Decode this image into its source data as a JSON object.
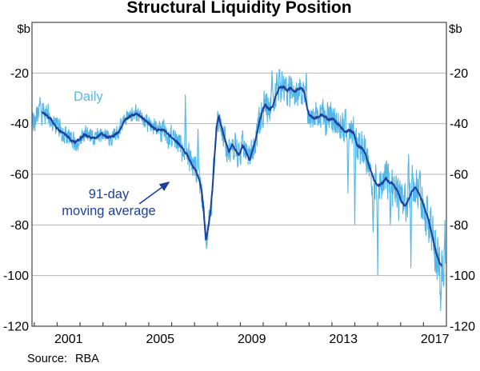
{
  "header": {
    "title": "Structural Liquidity Position"
  },
  "axes": {
    "y_unit_left": "$b",
    "y_unit_right": "$b"
  },
  "annotations": {
    "daily_label": "Daily",
    "ma_label_line1": "91-day",
    "ma_label_line2": "moving average"
  },
  "footer": {
    "source_label": "Source:",
    "source_value": "RBA"
  },
  "colors": {
    "daily": "#54b7e8",
    "moving_average": "#1e3f9b",
    "gridline": "#b5b5b5",
    "frame": "#444444"
  },
  "chart_data": {
    "type": "line",
    "title": "Structural Liquidity Position",
    "ylabel": "$b",
    "ylim": [
      -120,
      0
    ],
    "xlim": [
      1999.9,
      2018.0
    ],
    "grid": true,
    "legend_position": "inline-annotations",
    "y_ticks": [
      -20,
      -40,
      -60,
      -80,
      -100,
      -120
    ],
    "x_year_ticks": [
      2000,
      2001,
      2002,
      2003,
      2004,
      2005,
      2006,
      2007,
      2008,
      2009,
      2010,
      2011,
      2012,
      2013,
      2014,
      2015,
      2016,
      2017
    ],
    "x_labeled_years": [
      2001,
      2005,
      2009,
      2013,
      2017
    ],
    "series": [
      {
        "name": "Daily",
        "color": "#54b7e8",
        "description": "daily structural liquidity position, noisy series oscillating around the 91-day moving average",
        "derived_from": "91-day moving average",
        "noise_seed": 20180301,
        "noise_amplitude_anchors": [
          [
            1999.9,
            4.5
          ],
          [
            2001.5,
            3.5
          ],
          [
            2002.5,
            3.0
          ],
          [
            2004.0,
            2.6
          ],
          [
            2005.0,
            3.0
          ],
          [
            2006.0,
            4.5
          ],
          [
            2007.0,
            5.0
          ],
          [
            2008.0,
            5.0
          ],
          [
            2009.0,
            4.5
          ],
          [
            2010.0,
            5.5
          ],
          [
            2011.0,
            5.5
          ],
          [
            2012.0,
            5.0
          ],
          [
            2013.0,
            6.0
          ],
          [
            2014.0,
            6.0
          ],
          [
            2015.0,
            7.0
          ],
          [
            2016.0,
            7.5
          ],
          [
            2017.0,
            8.0
          ],
          [
            2018.0,
            9.0
          ]
        ],
        "baseline_prefix": [
          [
            1999.9,
            -38.5
          ],
          [
            2000.1,
            -36.5
          ]
        ],
        "notable_extremes": [
          [
            2000.25,
            -29.5
          ],
          [
            2006.6,
            -28.5
          ],
          [
            2007.15,
            -42
          ],
          [
            2007.52,
            -89.5
          ],
          [
            2010.38,
            -19
          ],
          [
            2011.88,
            -20
          ],
          [
            2013.7,
            -67.5
          ],
          [
            2014.0,
            -80
          ],
          [
            2014.8,
            -83
          ],
          [
            2015.0,
            -100
          ],
          [
            2015.55,
            -80
          ],
          [
            2016.35,
            -52
          ],
          [
            2016.45,
            -97
          ],
          [
            2017.75,
            -114
          ],
          [
            2017.93,
            -78
          ]
        ],
        "x_end": 2017.96
      },
      {
        "name": "91-day moving average",
        "color": "#1e3f9b",
        "jitter": 0.5,
        "points": [
          [
            2000.35,
            -35.5
          ],
          [
            2000.55,
            -37
          ],
          [
            2000.75,
            -38.5
          ],
          [
            2000.95,
            -41.5
          ],
          [
            2001.15,
            -43
          ],
          [
            2001.4,
            -44.5
          ],
          [
            2001.6,
            -46.5
          ],
          [
            2001.8,
            -47.5
          ],
          [
            2002.0,
            -46
          ],
          [
            2002.2,
            -44.5
          ],
          [
            2002.45,
            -45.5
          ],
          [
            2002.7,
            -45.5
          ],
          [
            2002.95,
            -44
          ],
          [
            2003.2,
            -45.5
          ],
          [
            2003.45,
            -45
          ],
          [
            2003.7,
            -43
          ],
          [
            2003.95,
            -38.5
          ],
          [
            2004.2,
            -37
          ],
          [
            2004.45,
            -36
          ],
          [
            2004.7,
            -37.5
          ],
          [
            2004.95,
            -39.5
          ],
          [
            2005.15,
            -41
          ],
          [
            2005.35,
            -42.5
          ],
          [
            2005.6,
            -42.5
          ],
          [
            2005.8,
            -43.5
          ],
          [
            2005.95,
            -45
          ],
          [
            2006.15,
            -46.5
          ],
          [
            2006.4,
            -49
          ],
          [
            2006.65,
            -52
          ],
          [
            2006.9,
            -56.5
          ],
          [
            2007.05,
            -58.5
          ],
          [
            2007.2,
            -62
          ],
          [
            2007.32,
            -67
          ],
          [
            2007.42,
            -77
          ],
          [
            2007.5,
            -86
          ],
          [
            2007.58,
            -82
          ],
          [
            2007.68,
            -76
          ],
          [
            2007.78,
            -66
          ],
          [
            2007.88,
            -52
          ],
          [
            2007.98,
            -40
          ],
          [
            2008.06,
            -37
          ],
          [
            2008.2,
            -42
          ],
          [
            2008.35,
            -47
          ],
          [
            2008.5,
            -51
          ],
          [
            2008.65,
            -48.5
          ],
          [
            2008.8,
            -50.5
          ],
          [
            2008.95,
            -52.5
          ],
          [
            2009.1,
            -48.5
          ],
          [
            2009.25,
            -51
          ],
          [
            2009.4,
            -54.5
          ],
          [
            2009.55,
            -50
          ],
          [
            2009.7,
            -45
          ],
          [
            2009.85,
            -38.5
          ],
          [
            2010.0,
            -34
          ],
          [
            2010.1,
            -32.5
          ],
          [
            2010.25,
            -34.5
          ],
          [
            2010.4,
            -33.5
          ],
          [
            2010.55,
            -29
          ],
          [
            2010.7,
            -26
          ],
          [
            2010.9,
            -25.5
          ],
          [
            2011.05,
            -27
          ],
          [
            2011.2,
            -26
          ],
          [
            2011.35,
            -27.5
          ],
          [
            2011.5,
            -26.5
          ],
          [
            2011.65,
            -26
          ],
          [
            2011.8,
            -27.5
          ],
          [
            2011.9,
            -33
          ],
          [
            2012.0,
            -36.5
          ],
          [
            2012.25,
            -38
          ],
          [
            2012.45,
            -37
          ],
          [
            2012.6,
            -36.5
          ],
          [
            2012.85,
            -38.5
          ],
          [
            2013.05,
            -38
          ],
          [
            2013.25,
            -40
          ],
          [
            2013.45,
            -42
          ],
          [
            2013.6,
            -43.5
          ],
          [
            2013.75,
            -42.5
          ],
          [
            2013.95,
            -43.5
          ],
          [
            2014.1,
            -48.5
          ],
          [
            2014.3,
            -49.5
          ],
          [
            2014.45,
            -51.5
          ],
          [
            2014.65,
            -57.5
          ],
          [
            2014.85,
            -62.5
          ],
          [
            2015.0,
            -64.5
          ],
          [
            2015.2,
            -63.5
          ],
          [
            2015.35,
            -61.5
          ],
          [
            2015.5,
            -63
          ],
          [
            2015.7,
            -64
          ],
          [
            2015.9,
            -67.5
          ],
          [
            2016.05,
            -71
          ],
          [
            2016.2,
            -72.5
          ],
          [
            2016.35,
            -70
          ],
          [
            2016.5,
            -66.5
          ],
          [
            2016.65,
            -65
          ],
          [
            2016.8,
            -67.5
          ],
          [
            2016.95,
            -71
          ],
          [
            2017.1,
            -74.5
          ],
          [
            2017.25,
            -79
          ],
          [
            2017.4,
            -85
          ],
          [
            2017.55,
            -91
          ],
          [
            2017.7,
            -95
          ],
          [
            2017.8,
            -96.5
          ]
        ]
      }
    ]
  }
}
